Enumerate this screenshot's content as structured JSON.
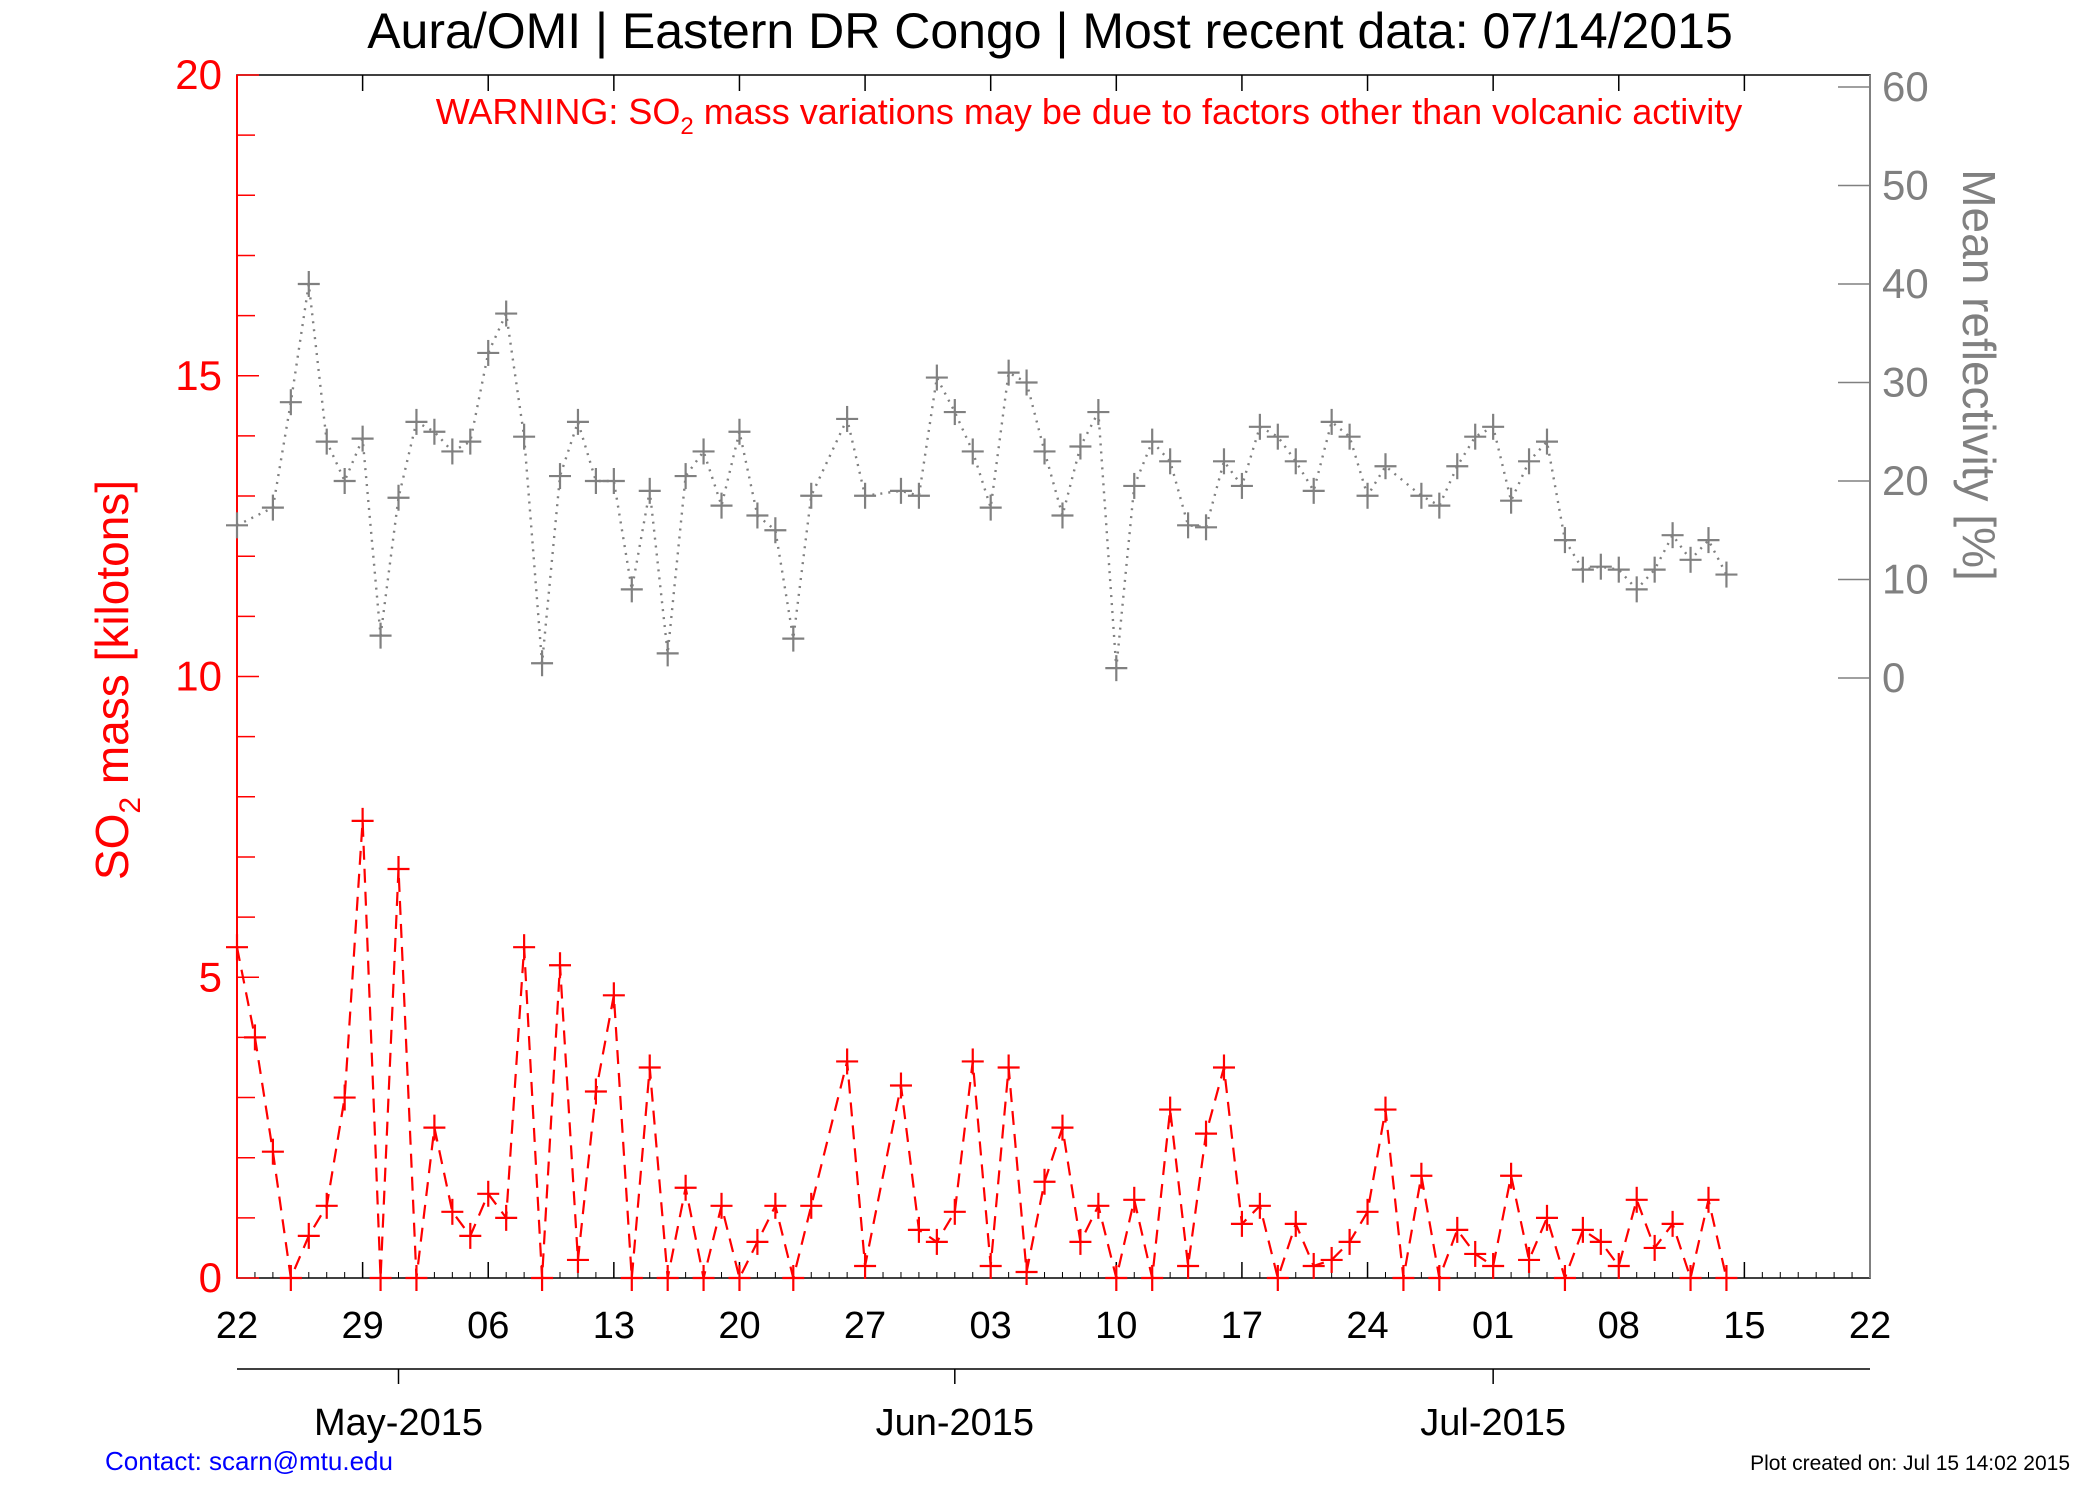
{
  "title": "Aura/OMI | Eastern DR Congo | Most recent data: 07/14/2015",
  "warning": {
    "prefix": "WARNING: SO",
    "sub": "2",
    "suffix": " mass variations may be due to factors other than volcanic activity"
  },
  "footer": {
    "contact": "Contact: scarn@mtu.edu",
    "created": "Plot created on: Jul 15 14:02 2015"
  },
  "colors": {
    "so2": "#ff0000",
    "reflectivity": "#808080",
    "axis": "#000000",
    "footer_link": "#0000ff"
  },
  "chart_data": {
    "type": "line",
    "title": "Aura/OMI | Eastern DR Congo | Most recent data: 07/14/2015",
    "xlim": [
      "2015-04-22",
      "2015-07-22"
    ],
    "x_ticks": [
      "2015-04-22",
      "2015-04-29",
      "2015-05-06",
      "2015-05-13",
      "2015-05-20",
      "2015-05-27",
      "2015-06-03",
      "2015-06-10",
      "2015-06-17",
      "2015-06-24",
      "2015-07-01",
      "2015-07-08",
      "2015-07-15",
      "2015-07-22"
    ],
    "x_tick_labels": [
      "22",
      "29",
      "06",
      "13",
      "20",
      "27",
      "03",
      "10",
      "17",
      "24",
      "01",
      "08",
      "15",
      "22"
    ],
    "month_labels": [
      {
        "date": "2015-05-01",
        "label": "May-2015"
      },
      {
        "date": "2015-06-01",
        "label": "Jun-2015"
      },
      {
        "date": "2015-07-01",
        "label": "Jul-2015"
      }
    ],
    "y_left": {
      "label_prefix": "SO",
      "label_sub": "2",
      "label_suffix": " mass [kilotons]",
      "lim": [
        0,
        20
      ],
      "ticks": [
        0,
        5,
        10,
        15,
        20
      ],
      "tick_labels": [
        "0",
        "5",
        "10",
        "15",
        "20"
      ]
    },
    "y_right": {
      "label": "Mean reflectivity [%]",
      "lim": [
        0,
        60
      ],
      "ticks": [
        0,
        10,
        20,
        30,
        40,
        50,
        60
      ],
      "tick_labels": [
        "0",
        "10",
        "20",
        "30",
        "40",
        "50",
        "60"
      ]
    },
    "series": [
      {
        "axis": "left",
        "style": "dashed",
        "x": [
          "2015-04-22",
          "2015-04-23",
          "2015-04-24",
          "2015-04-25",
          "2015-04-26",
          "2015-04-27",
          "2015-04-28",
          "2015-04-29",
          "2015-04-30",
          "2015-05-01",
          "2015-05-02",
          "2015-05-03",
          "2015-05-04",
          "2015-05-05",
          "2015-05-06",
          "2015-05-07",
          "2015-05-08",
          "2015-05-09",
          "2015-05-10",
          "2015-05-11",
          "2015-05-12",
          "2015-05-13",
          "2015-05-14",
          "2015-05-15",
          "2015-05-16",
          "2015-05-17",
          "2015-05-18",
          "2015-05-19",
          "2015-05-20",
          "2015-05-21",
          "2015-05-22",
          "2015-05-23",
          "2015-05-24",
          "2015-05-26",
          "2015-05-27",
          "2015-05-29",
          "2015-05-30",
          "2015-05-31",
          "2015-06-01",
          "2015-06-02",
          "2015-06-03",
          "2015-06-04",
          "2015-06-05",
          "2015-06-06",
          "2015-06-07",
          "2015-06-08",
          "2015-06-09",
          "2015-06-10",
          "2015-06-11",
          "2015-06-12",
          "2015-06-13",
          "2015-06-14",
          "2015-06-15",
          "2015-06-16",
          "2015-06-17",
          "2015-06-18",
          "2015-06-19",
          "2015-06-20",
          "2015-06-21",
          "2015-06-22",
          "2015-06-23",
          "2015-06-24",
          "2015-06-25",
          "2015-06-26",
          "2015-06-27",
          "2015-06-28",
          "2015-06-29",
          "2015-06-30",
          "2015-07-01",
          "2015-07-02",
          "2015-07-03",
          "2015-07-04",
          "2015-07-05",
          "2015-07-06",
          "2015-07-07",
          "2015-07-08",
          "2015-07-09",
          "2015-07-10",
          "2015-07-11",
          "2015-07-12",
          "2015-07-13",
          "2015-07-14"
        ],
        "y": [
          5.5,
          4.0,
          2.1,
          0.0,
          0.7,
          1.2,
          3.0,
          7.6,
          0.0,
          6.8,
          0.0,
          2.5,
          1.1,
          0.7,
          1.4,
          1.0,
          5.5,
          0.0,
          5.2,
          0.3,
          3.1,
          4.7,
          0.0,
          3.5,
          0.0,
          1.5,
          0.0,
          1.2,
          0.0,
          0.6,
          1.2,
          0.0,
          1.2,
          3.6,
          0.2,
          3.2,
          0.8,
          0.6,
          1.1,
          3.6,
          0.2,
          3.5,
          0.1,
          1.6,
          2.5,
          0.6,
          1.2,
          0.0,
          1.3,
          0.0,
          2.8,
          0.2,
          2.4,
          3.5,
          0.9,
          1.2,
          0.0,
          0.9,
          0.2,
          0.3,
          0.6,
          1.1,
          2.8,
          0.0,
          1.7,
          0.0,
          0.8,
          0.4,
          0.2,
          1.7,
          0.3,
          1.0,
          0.0,
          0.8,
          0.6,
          0.2,
          1.3,
          0.5,
          0.9,
          0.0,
          1.3,
          0.0
        ]
      },
      {
        "axis": "right",
        "style": "dotted",
        "x": [
          "2015-04-22",
          "2015-04-24",
          "2015-04-25",
          "2015-04-26",
          "2015-04-27",
          "2015-04-28",
          "2015-04-29",
          "2015-04-30",
          "2015-05-01",
          "2015-05-02",
          "2015-05-03",
          "2015-05-04",
          "2015-05-05",
          "2015-05-06",
          "2015-05-07",
          "2015-05-08",
          "2015-05-09",
          "2015-05-10",
          "2015-05-11",
          "2015-05-12",
          "2015-05-13",
          "2015-05-14",
          "2015-05-15",
          "2015-05-16",
          "2015-05-17",
          "2015-05-18",
          "2015-05-19",
          "2015-05-20",
          "2015-05-21",
          "2015-05-22",
          "2015-05-23",
          "2015-05-24",
          "2015-05-26",
          "2015-05-27",
          "2015-05-29",
          "2015-05-30",
          "2015-05-31",
          "2015-06-01",
          "2015-06-02",
          "2015-06-03",
          "2015-06-04",
          "2015-06-05",
          "2015-06-06",
          "2015-06-07",
          "2015-06-08",
          "2015-06-09",
          "2015-06-10",
          "2015-06-11",
          "2015-06-12",
          "2015-06-13",
          "2015-06-14",
          "2015-06-15",
          "2015-06-16",
          "2015-06-17",
          "2015-06-18",
          "2015-06-19",
          "2015-06-20",
          "2015-06-21",
          "2015-06-22",
          "2015-06-23",
          "2015-06-24",
          "2015-06-25",
          "2015-06-27",
          "2015-06-28",
          "2015-06-29",
          "2015-06-30",
          "2015-07-01",
          "2015-07-02",
          "2015-07-03",
          "2015-07-04",
          "2015-07-05",
          "2015-07-06",
          "2015-07-07",
          "2015-07-08",
          "2015-07-09",
          "2015-07-10",
          "2015-07-11",
          "2015-07-12",
          "2015-07-13",
          "2015-07-14"
        ],
        "y": [
          15.5,
          17.3,
          28.0,
          40.0,
          24.0,
          20.0,
          24.3,
          4.3,
          18.3,
          26.0,
          25.0,
          23.0,
          24.0,
          33.0,
          37.0,
          24.5,
          1.5,
          20.5,
          26.0,
          20.0,
          20.0,
          9.0,
          19.0,
          2.5,
          20.5,
          23.0,
          17.5,
          25.0,
          16.5,
          15.0,
          4.0,
          18.5,
          26.3,
          18.5,
          19.0,
          18.5,
          30.5,
          27.0,
          23.0,
          17.3,
          31.0,
          30.0,
          23.0,
          16.5,
          23.5,
          27.0,
          1.0,
          19.5,
          24.0,
          22.0,
          15.5,
          15.3,
          22.0,
          19.5,
          25.5,
          24.5,
          22.0,
          19.0,
          26.0,
          24.5,
          18.5,
          21.5,
          18.5,
          17.5,
          21.5,
          24.5,
          25.5,
          18.0,
          22.0,
          24.0,
          14.0,
          11.0,
          11.3,
          11.0,
          9.0,
          11.0,
          14.5,
          12.0,
          14.0,
          10.5
        ]
      }
    ]
  }
}
